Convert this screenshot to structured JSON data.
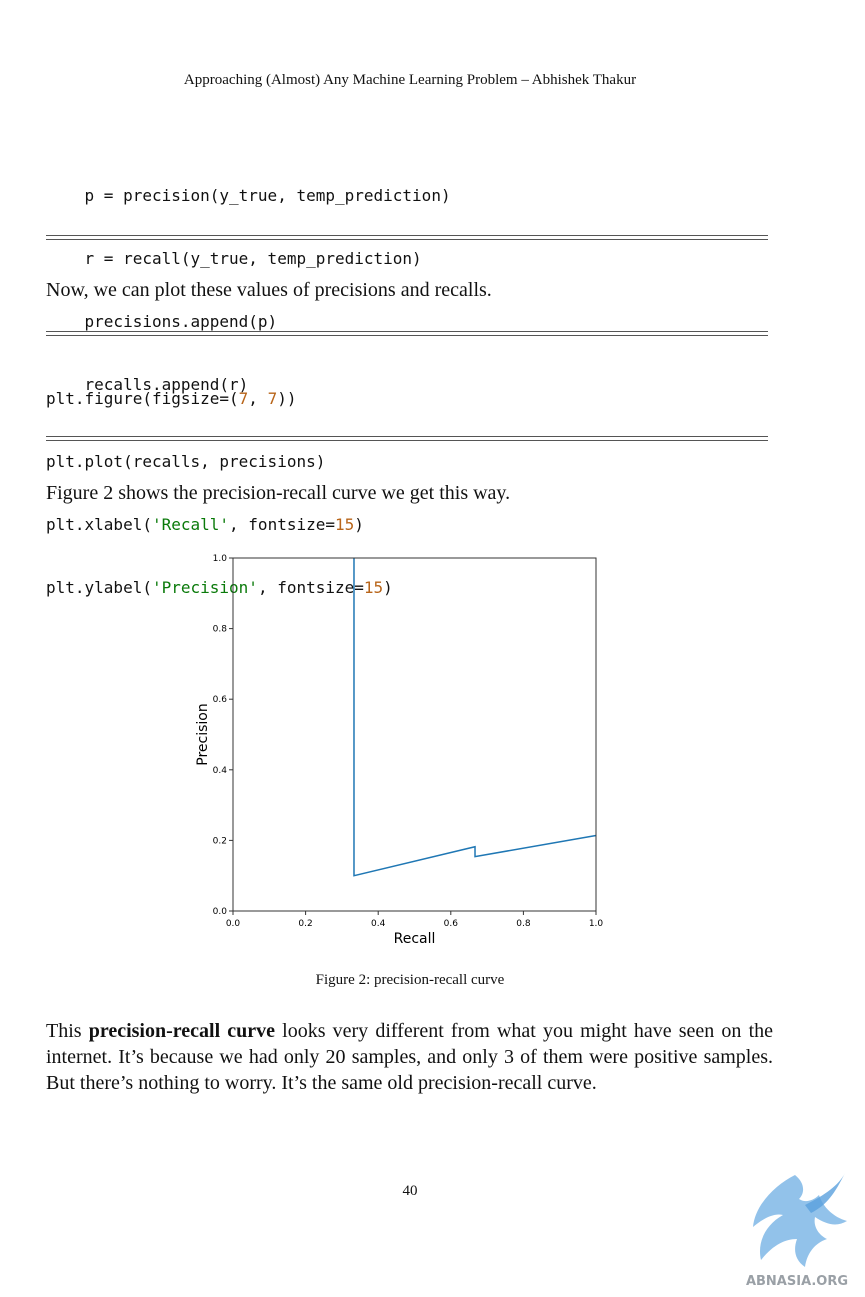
{
  "header": "Approaching (Almost) Any Machine Learning Problem – Abhishek Thakur",
  "code_block_1": [
    "    p = precision(y_true, temp_prediction)",
    "    r = recall(y_true, temp_prediction)",
    "    precisions.append(p)",
    "    recalls.append(r)"
  ],
  "para_1": "Now, we can plot these values of precisions and recalls.",
  "code_block_2": {
    "line1_a": "plt.figure(figsize=(",
    "line1_n1": "7",
    "line1_b": ", ",
    "line1_n2": "7",
    "line1_c": "))",
    "line2": "plt.plot(recalls, precisions)",
    "line3_a": "plt.xlabel(",
    "line3_s": "'Recall'",
    "line3_b": ", fontsize=",
    "line3_n": "15",
    "line3_c": ")",
    "line4_a": "plt.ylabel(",
    "line4_s": "'Precision'",
    "line4_b": ", fontsize=",
    "line4_n": "15",
    "line4_c": ")"
  },
  "para_2": "Figure 2 shows the precision-recall curve we get this way.",
  "chart_data": {
    "type": "line",
    "xlabel": "Recall",
    "ylabel": "Precision",
    "xlim": [
      0.0,
      1.0
    ],
    "ylim": [
      0.0,
      1.0
    ],
    "xticks": [
      "0.0",
      "0.2",
      "0.4",
      "0.6",
      "0.8",
      "1.0"
    ],
    "yticks": [
      "0.0",
      "0.2",
      "0.4",
      "0.6",
      "0.8",
      "1.0"
    ],
    "grid": false,
    "color": "#1f77b4",
    "x": [
      0.3333,
      0.3333,
      0.6667,
      0.6667,
      1.0
    ],
    "y": [
      1.0,
      0.1,
      0.182,
      0.154,
      0.214
    ]
  },
  "caption": "Figure 2: precision-recall curve",
  "para_3_before": "This ",
  "para_3_bold": "precision-recall curve",
  "para_3_after": " looks very different from what you might have seen on the internet. It’s because we had only 20 samples, and only 3 of them were positive samples. But there’s nothing to worry. It’s the same old precision-recall curve.",
  "page_number": "40",
  "watermark_text": "ABNASIA.ORG"
}
